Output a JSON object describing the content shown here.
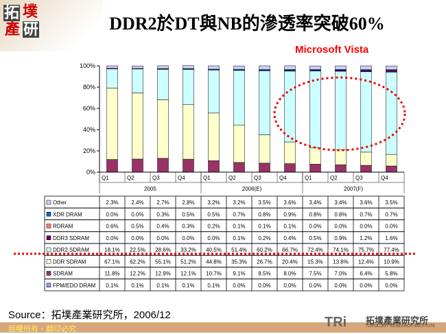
{
  "header": {
    "title": "DDR2於DT與NB的滲透率突破60%",
    "annotation": "Microsoft Vista",
    "logo_text": "拓墣產研"
  },
  "footer": {
    "source": "Source：拓墣產業研究所，2006/12",
    "copyright": "版權所有‧翻印必究",
    "logo_mark": "TRi",
    "logo_cn": "拓墣產業研究所",
    "logo_en": "TOPOLOGY RESEARCH INSTITUTE"
  },
  "chart_data": {
    "type": "bar",
    "stacked": true,
    "percent": true,
    "quarters": [
      "Q1",
      "Q2",
      "Q3",
      "Q4",
      "Q1",
      "Q2",
      "Q3",
      "Q4",
      "Q1",
      "Q2",
      "Q3",
      "Q4"
    ],
    "years": [
      {
        "label": "2005",
        "span": 4
      },
      {
        "label": "2006(E)",
        "span": 4
      },
      {
        "label": "2007(F)",
        "span": 4
      }
    ],
    "yticks": [
      "0%",
      "20%",
      "40%",
      "60%",
      "80%",
      "100%"
    ],
    "ylim": [
      0,
      100
    ],
    "legend_placement": "table",
    "series": [
      {
        "name": "Other",
        "color": "#ccccff",
        "values": [
          2.3,
          2.4,
          2.7,
          2.8,
          3.2,
          3.2,
          3.5,
          3.6,
          3.4,
          3.4,
          3.6,
          3.5
        ]
      },
      {
        "name": "XDR DRAM",
        "color": "#0066cc",
        "values": [
          0.0,
          0.0,
          0.3,
          0.5,
          0.5,
          0.7,
          0.8,
          0.9,
          0.8,
          0.8,
          0.7,
          0.7
        ]
      },
      {
        "name": "RDRAM",
        "color": "#ff8080",
        "values": [
          0.6,
          0.5,
          0.4,
          0.3,
          0.2,
          0.1,
          0.1,
          0.1,
          0.0,
          0.0,
          0.0,
          0.0
        ]
      },
      {
        "name": "DDR3 SDRAM",
        "color": "#660066",
        "values": [
          0.0,
          0.0,
          0.0,
          0.0,
          0.0,
          0.1,
          0.2,
          0.4,
          0.5,
          0.9,
          1.2,
          1.6
        ]
      },
      {
        "name": "DDR2 SDRAM",
        "color": "#ccffff",
        "values": [
          18.1,
          22.5,
          28.6,
          33.2,
          40.5,
          51.4,
          60.2,
          66.7,
          72.4,
          74.1,
          75.7,
          77.4
        ]
      },
      {
        "name": "DDR SDRAM",
        "color": "#ffffcc",
        "values": [
          67.1,
          62.2,
          55.1,
          51.2,
          44.8,
          35.3,
          26.7,
          20.4,
          15.3,
          13.8,
          12.4,
          10.9
        ]
      },
      {
        "name": "SDRAM",
        "color": "#993366",
        "values": [
          11.8,
          12.2,
          12.9,
          12.1,
          10.7,
          9.1,
          8.5,
          8.0,
          7.5,
          7.0,
          6.4,
          5.8
        ]
      },
      {
        "name": "FPM/EDO DRAM",
        "color": "#9999ff",
        "values": [
          0.1,
          0.1,
          0.1,
          0.1,
          0.1,
          0.0,
          0.0,
          0.0,
          0.0,
          0.0,
          0.0,
          0.0
        ]
      }
    ]
  }
}
